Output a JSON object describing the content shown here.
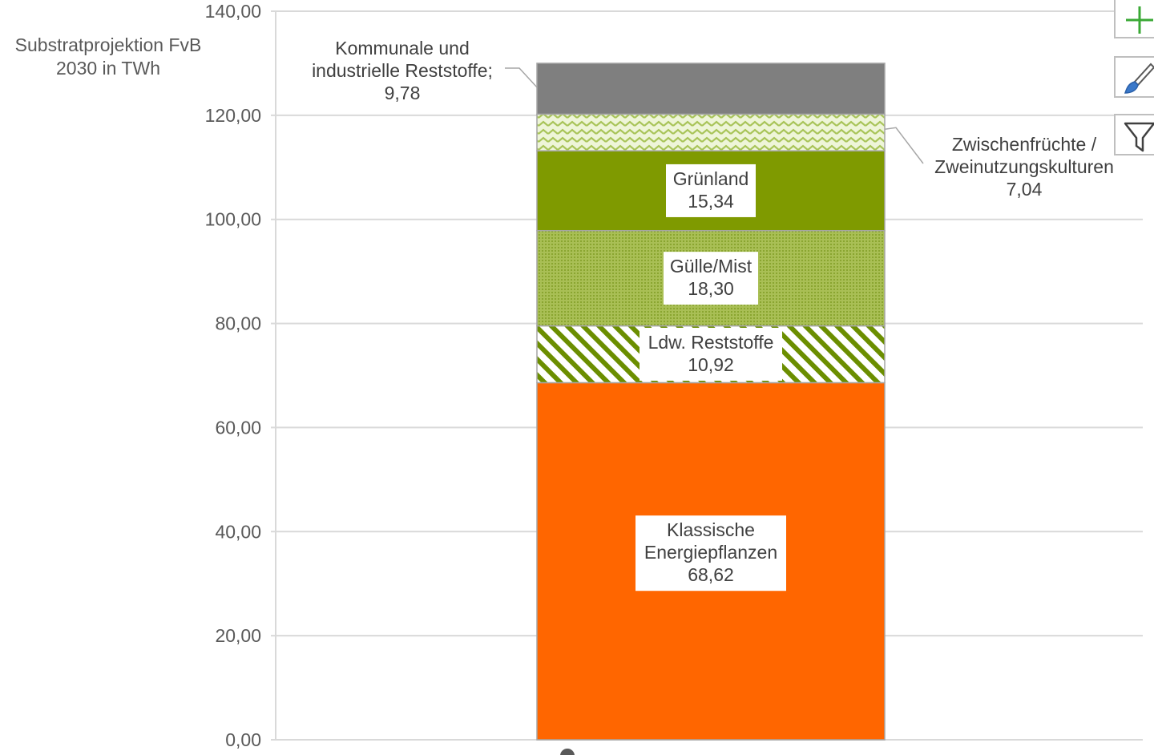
{
  "chart_data": {
    "type": "bar",
    "stacked": true,
    "title": "Substratprojektion FvB\n2030 in TWh",
    "categories": [
      ""
    ],
    "ylim": [
      0,
      140
    ],
    "y_ticks": [
      "0,00",
      "20,00",
      "40,00",
      "60,00",
      "80,00",
      "100,00",
      "120,00",
      "140,00"
    ],
    "grid": true,
    "series": [
      {
        "name": "Klassische Energiepflanzen",
        "values": [
          68.62
        ],
        "label_lines": [
          "Klassische",
          "Energiepflanzen",
          "68,62"
        ],
        "color": "#ff6600",
        "pattern": "solid"
      },
      {
        "name": "Ldw. Reststoffe",
        "values": [
          10.92
        ],
        "label_lines": [
          "Ldw. Reststoffe",
          "10,92"
        ],
        "color": "#6b8e00",
        "pattern": "diagonal-stripes"
      },
      {
        "name": "Gülle/Mist",
        "values": [
          18.3
        ],
        "label_lines": [
          "Gülle/Mist",
          "18,30"
        ],
        "color": "#9bb33c",
        "pattern": "dotted"
      },
      {
        "name": "Grünland",
        "values": [
          15.34
        ],
        "label_lines": [
          "Grünland",
          "15,34"
        ],
        "color": "#7f9a00",
        "pattern": "solid"
      },
      {
        "name": "Zwischenfrüchte / Zweinutzungskulturen",
        "values": [
          7.04
        ],
        "label_lines": [
          "Zwischenfrüchte /",
          "Zweinutzungskulturen",
          "7,04"
        ],
        "color": "#b5cc62",
        "pattern": "zigzag"
      },
      {
        "name": "Kommunale und industrielle Reststoffe",
        "values": [
          9.78
        ],
        "label_lines": [
          "Kommunale und",
          "industrielle Reststoffe;",
          "9,78"
        ],
        "color": "#7f7f7f",
        "pattern": "solid"
      }
    ]
  },
  "toolbar": [
    {
      "icon": "plus-icon",
      "color": "#3aa935"
    },
    {
      "icon": "brush-icon",
      "color": "#3a78c9"
    },
    {
      "icon": "filter-icon",
      "color": "#404040"
    }
  ]
}
